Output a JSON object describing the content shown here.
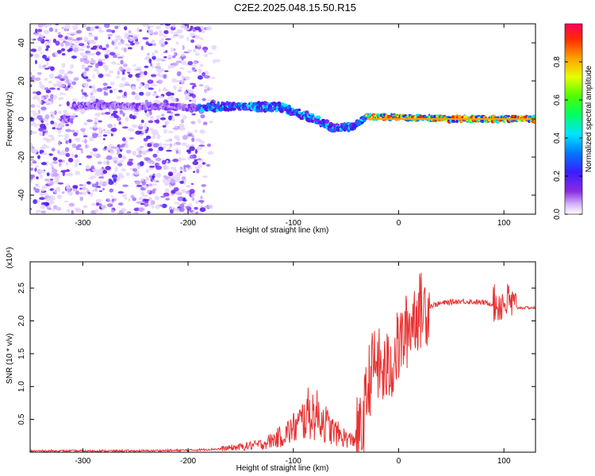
{
  "title": "C2E2.2025.048.15.50.R15",
  "colors": {
    "spectrogram_low": "#7b2bff",
    "snr_line": "#e83232",
    "background": "#ffffff"
  },
  "chart_data": [
    {
      "type": "heatmap",
      "xlabel": "Height of straight line (km)",
      "ylabel": "Frequency (Hz)",
      "xlim": [
        -350,
        130
      ],
      "ylim": [
        -50,
        50
      ],
      "xticks": [
        -300,
        -200,
        -100,
        0,
        100
      ],
      "yticks": [
        -40,
        -20,
        0,
        20,
        40
      ],
      "colorbar": {
        "label": "Normalized spectral amplitude",
        "range": [
          0.0,
          1.0
        ],
        "ticks": [
          "0.0",
          "0.2",
          "0.4",
          "0.6",
          "0.8"
        ],
        "colormap": "rainbow"
      },
      "features": {
        "noise_region_x": [
          -350,
          -170
        ],
        "carrier_track": [
          {
            "x": -310,
            "y": 7
          },
          {
            "x": -270,
            "y": 7
          },
          {
            "x": -190,
            "y": 6
          },
          {
            "x": -150,
            "y": 7
          },
          {
            "x": -110,
            "y": 6
          },
          {
            "x": -80,
            "y": 0
          },
          {
            "x": -60,
            "y": -5
          },
          {
            "x": -45,
            "y": -4
          },
          {
            "x": -30,
            "y": 1
          },
          {
            "x": 0,
            "y": 1
          },
          {
            "x": 50,
            "y": 0
          },
          {
            "x": 130,
            "y": 0
          }
        ]
      }
    },
    {
      "type": "line",
      "xlabel": "Height of straight line (km)",
      "ylabel": "SNR (10 * v/v)",
      "yunit": "(x10⁴)",
      "xlim": [
        -350,
        130
      ],
      "ylim": [
        0,
        2.9
      ],
      "xticks": [
        -300,
        -200,
        -100,
        0,
        100
      ],
      "yticks": [
        "0.5",
        "1.0",
        "1.5",
        "2.0",
        "2.5"
      ],
      "series": [
        {
          "x": [
            -350,
            -300,
            -250,
            -200,
            -170,
            -150,
            -130,
            -110,
            -95,
            -85,
            -75,
            -65,
            -55,
            -45,
            -35,
            -28,
            -22,
            -15,
            -8,
            0,
            8,
            15,
            25,
            35,
            45,
            60,
            80,
            95,
            105,
            110,
            120,
            130
          ],
          "y": [
            0.02,
            0.02,
            0.02,
            0.03,
            0.05,
            0.08,
            0.12,
            0.25,
            0.42,
            0.6,
            0.55,
            0.35,
            0.25,
            0.18,
            0.3,
            1.1,
            1.4,
            1.2,
            1.3,
            1.6,
            1.85,
            2.1,
            2.2,
            2.25,
            2.28,
            2.3,
            2.28,
            2.25,
            2.3,
            2.2,
            2.2,
            2.2
          ]
        }
      ]
    }
  ]
}
